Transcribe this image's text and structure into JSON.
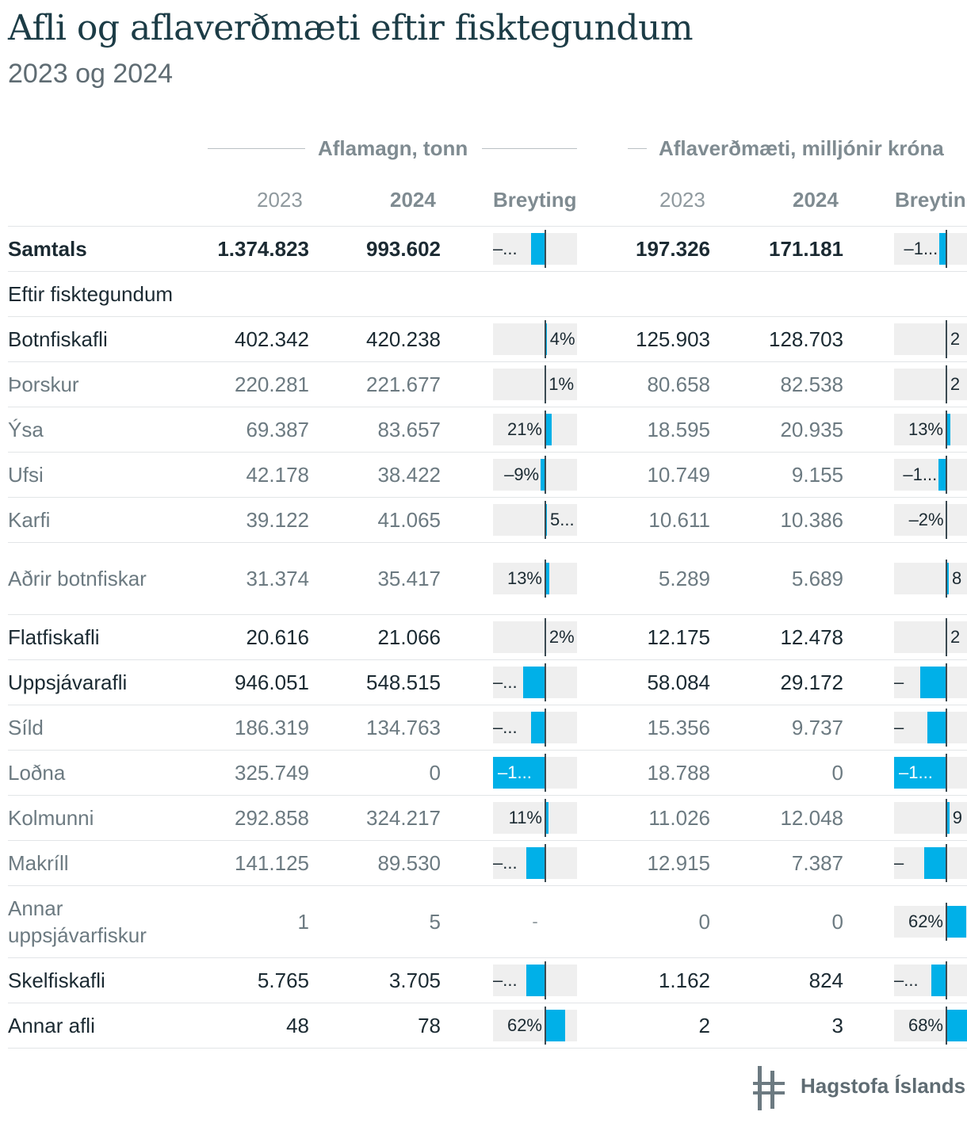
{
  "header": {
    "title": "Afli og aflaverðmæti eftir fisktegundum",
    "subtitle": "2023 og 2024"
  },
  "groups": {
    "catch": "Aflamagn, tonn",
    "value": "Aflaverðmæti, milljónir króna"
  },
  "columns": {
    "y2023": "2023",
    "y2024": "2024",
    "change": "Breyting",
    "change_cut": "Breytin"
  },
  "chart_data": {
    "type": "table",
    "title": "Afli og aflaverðmæti eftir fisktegundum",
    "subtitle": "2023 og 2024",
    "column_groups": [
      "Aflamagn, tonn",
      "Aflaverðmæti, milljónir króna"
    ],
    "columns": [
      "2023",
      "2024",
      "Breyting",
      "2023",
      "2024",
      "Breytin"
    ],
    "rows": [
      {
        "name": "Samtals",
        "level": "total",
        "c23": "1.374.823",
        "c24": "993.602",
        "cchg": -27.7,
        "clab": "–...",
        "v23": "197.326",
        "v24": "171.181",
        "vchg": -13.2,
        "vlab": "–1..."
      },
      {
        "name": "Eftir fisktegundum",
        "level": "section"
      },
      {
        "name": "Botnfiskafli",
        "level": "lvl1",
        "c23": "402.342",
        "c24": "420.238",
        "cchg": 4.4,
        "clab": "4%",
        "v23": "125.903",
        "v24": "128.703",
        "vchg": 2.2,
        "vlab": "2"
      },
      {
        "name": "Þorskur",
        "level": "lvl2",
        "c23": "220.281",
        "c24": "221.677",
        "cchg": 0.6,
        "clab": "1%",
        "v23": "80.658",
        "v24": "82.538",
        "vchg": 2.3,
        "vlab": "2"
      },
      {
        "name": "Ýsa",
        "level": "lvl2",
        "c23": "69.387",
        "c24": "83.657",
        "cchg": 20.6,
        "clab": "21%",
        "v23": "18.595",
        "v24": "20.935",
        "vchg": 12.6,
        "vlab": "13%"
      },
      {
        "name": "Ufsi",
        "level": "lvl2",
        "c23": "42.178",
        "c24": "38.422",
        "cchg": -8.9,
        "clab": "–9%",
        "v23": "10.749",
        "v24": "9.155",
        "vchg": -14.8,
        "vlab": "–1..."
      },
      {
        "name": "Karfi",
        "level": "lvl2",
        "c23": "39.122",
        "c24": "41.065",
        "cchg": 5.0,
        "clab": "5...",
        "v23": "10.611",
        "v24": "10.386",
        "vchg": -2.1,
        "vlab": "–2%"
      },
      {
        "name": "Aðrir botnfiskar",
        "level": "lvl2",
        "tall": true,
        "c23": "31.374",
        "c24": "35.417",
        "cchg": 12.9,
        "clab": "13%",
        "v23": "5.289",
        "v24": "5.689",
        "vchg": 7.6,
        "vlab": "8"
      },
      {
        "name": "Flatfiskafli",
        "level": "lvl1",
        "c23": "20.616",
        "c24": "21.066",
        "cchg": 2.2,
        "clab": "2%",
        "v23": "12.175",
        "v24": "12.478",
        "vchg": 2.5,
        "vlab": "2"
      },
      {
        "name": "Uppsjávarafli",
        "level": "lvl1",
        "c23": "946.051",
        "c24": "548.515",
        "cchg": -42.0,
        "clab": "–...",
        "v23": "58.084",
        "v24": "29.172",
        "vchg": -49.8,
        "vlab": "–"
      },
      {
        "name": "Síld",
        "level": "lvl2",
        "c23": "186.319",
        "c24": "134.763",
        "cchg": -27.7,
        "clab": "–...",
        "v23": "15.356",
        "v24": "9.737",
        "vchg": -36.6,
        "vlab": "–"
      },
      {
        "name": "Loðna",
        "level": "lvl2",
        "c23": "325.749",
        "c24": "0",
        "cchg": -100,
        "clab": "–1...",
        "v23": "18.788",
        "v24": "0",
        "vchg": -100,
        "vlab": "–1..."
      },
      {
        "name": "Kolmunni",
        "level": "lvl2",
        "c23": "292.858",
        "c24": "324.217",
        "cchg": 10.7,
        "clab": "11%",
        "v23": "11.026",
        "v24": "12.048",
        "vchg": 9.3,
        "vlab": "9"
      },
      {
        "name": "Makríll",
        "level": "lvl2",
        "c23": "141.125",
        "c24": "89.530",
        "cchg": -36.6,
        "clab": "–...",
        "v23": "12.915",
        "v24": "7.387",
        "vchg": -42.8,
        "vlab": "–"
      },
      {
        "name": "Annar uppsjávarfiskur",
        "level": "lvl2",
        "tall": true,
        "c23": "1",
        "c24": "5",
        "cchg": null,
        "clab": "-",
        "v23": "0",
        "v24": "0",
        "vchg": 62,
        "vlab": "62%"
      },
      {
        "name": "Skelfiskafli",
        "level": "lvl1",
        "c23": "5.765",
        "c24": "3.705",
        "cchg": -35.7,
        "clab": "–...",
        "v23": "1.162",
        "v24": "824",
        "vchg": -29.1,
        "vlab": "–..."
      },
      {
        "name": "Annar afli",
        "level": "lvl1",
        "c23": "48",
        "c24": "78",
        "cchg": 62,
        "clab": "62%",
        "v23": "2",
        "v24": "3",
        "vchg": 68,
        "vlab": "68%"
      }
    ]
  },
  "footer": {
    "logo_text": "Hagstofa Íslands"
  }
}
